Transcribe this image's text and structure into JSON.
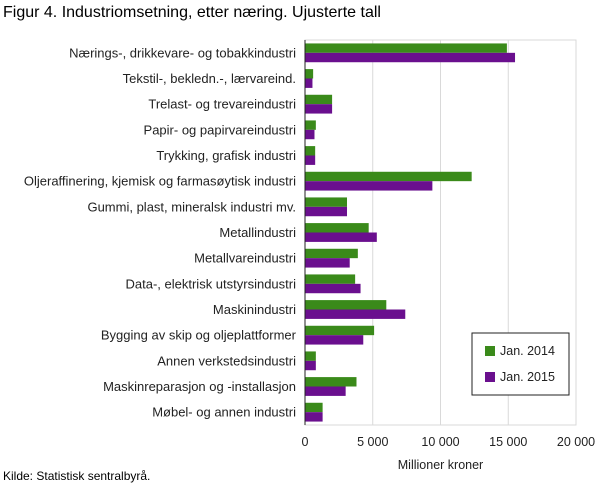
{
  "title": "Figur 4. Industriomsetning, etter næring. Ujusterte tall",
  "source": "Kilde: Statistisk sentralbyrå.",
  "chart_data": {
    "type": "bar",
    "orientation": "horizontal",
    "categories": [
      "Nærings-, drikkevare- og tobakkindustri",
      "Tekstil-, bekledn.-, lærvareind.",
      "Trelast- og trevareindustri",
      "Papir- og papirvareindustri",
      "Trykking, grafisk industri",
      "Oljeraffinering, kjemisk og farmasøytisk industri",
      "Gummi, plast, mineralsk industri mv.",
      "Metallindustri",
      "Metallvareindustri",
      "Data-, elektrisk utstyrsindustri",
      "Maskinindustri",
      "Bygging av skip og oljeplattformer",
      "Annen verkstedsindustri",
      "Maskinreparasjon og -installasjon",
      "Møbel- og annen industri"
    ],
    "series": [
      {
        "name": "Jan. 2014",
        "color": "#3a8a1a",
        "values": [
          14900,
          600,
          2000,
          800,
          750,
          12300,
          3100,
          4700,
          3900,
          3700,
          6000,
          5100,
          800,
          3800,
          1300
        ]
      },
      {
        "name": "Jan. 2015",
        "color": "#6a0f8e",
        "values": [
          15500,
          550,
          2000,
          700,
          750,
          9400,
          3100,
          5300,
          3300,
          4100,
          7400,
          4300,
          800,
          3000,
          1300
        ]
      }
    ],
    "xlabel": "Millioner kroner",
    "ylabel": "",
    "xlim": [
      0,
      20000
    ],
    "xticks": [
      0,
      5000,
      10000,
      15000,
      20000
    ],
    "xtick_labels": [
      "0",
      "5 000",
      "10 000",
      "15 000",
      "20 000"
    ],
    "grid": true,
    "legend_position": "bottom-right"
  }
}
